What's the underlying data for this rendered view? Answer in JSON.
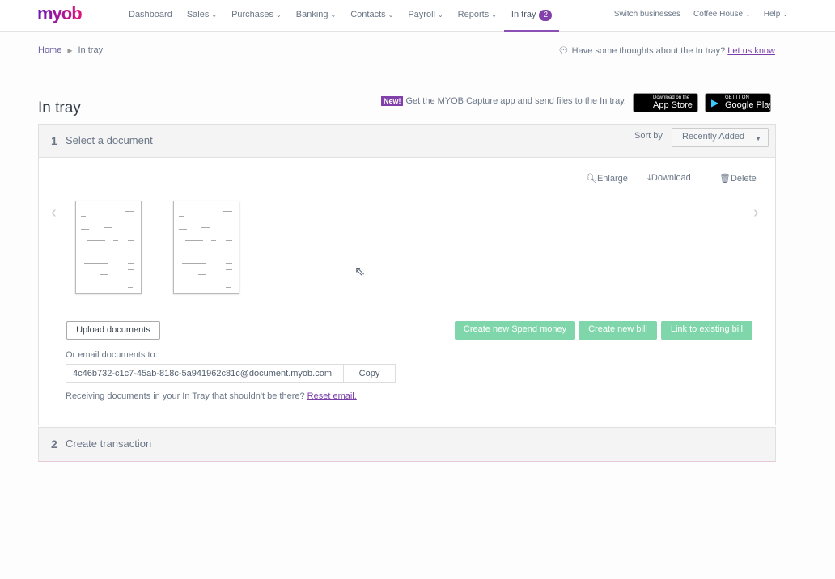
{
  "nav": {
    "logo": "myob",
    "items": [
      {
        "label": "Dashboard",
        "dropdown": false
      },
      {
        "label": "Sales",
        "dropdown": true
      },
      {
        "label": "Purchases",
        "dropdown": true
      },
      {
        "label": "Banking",
        "dropdown": true
      },
      {
        "label": "Contacts",
        "dropdown": true
      },
      {
        "label": "Payroll",
        "dropdown": true
      },
      {
        "label": "Reports",
        "dropdown": true
      },
      {
        "label": "In tray",
        "dropdown": false,
        "badge": "2",
        "active": true
      }
    ],
    "right": [
      {
        "label": "Switch businesses"
      },
      {
        "label": "Coffee House"
      },
      {
        "label": "Help"
      }
    ]
  },
  "breadcrumb": {
    "home": "Home",
    "current": "In tray"
  },
  "feedback": {
    "text": "Have some thoughts about the In tray?",
    "link": "Let us know"
  },
  "page_title": "In tray",
  "promo": {
    "badge": "New!",
    "text": "Get the MYOB Capture app and send files to the In tray.",
    "appstore_small": "Download on the",
    "appstore": "App Store",
    "googleplay_small": "GET IT ON",
    "googleplay": "Google Play"
  },
  "step1": {
    "number": "1",
    "title": "Select a document",
    "sort_label": "Sort by",
    "sort_value": "Recently Added",
    "actions": {
      "enlarge": "Enlarge",
      "download": "Download",
      "delete": "Delete"
    },
    "upload": "Upload documents",
    "spend": "Create new Spend money",
    "bill": "Create new bill",
    "link_bill": "Link to existing bill",
    "email_label": "Or email documents to:",
    "email": "4c46b732-c1c7-45ab-818c-5a941962c81c@document.myob.com",
    "copy": "Copy",
    "receiving": "Receiving documents in your In Tray that shouldn't be there?",
    "reset": "Reset email."
  },
  "step2": {
    "number": "2",
    "title": "Create transaction"
  },
  "colors": {
    "accent": "#8241aa",
    "green": "#7fd6aa"
  }
}
